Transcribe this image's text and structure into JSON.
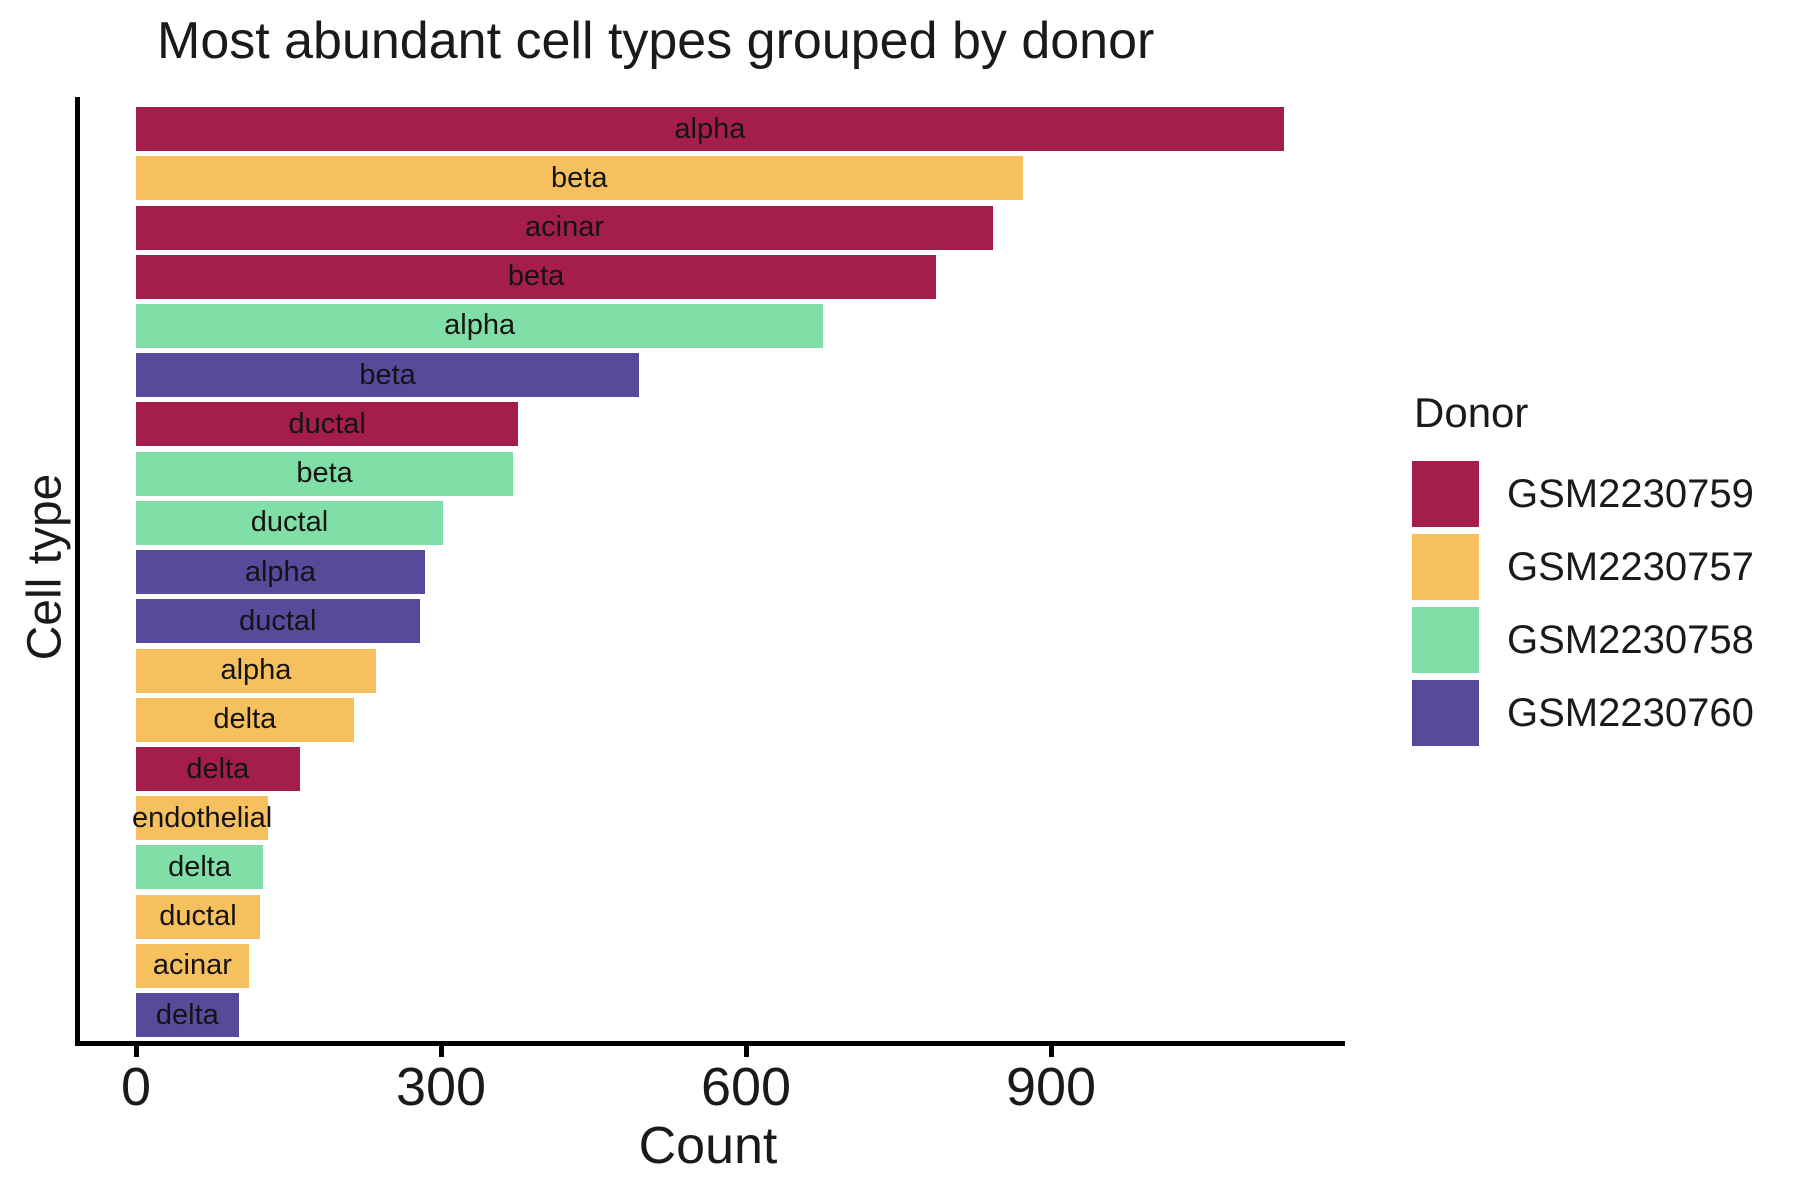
{
  "chart_data": {
    "type": "bar",
    "orientation": "horizontal",
    "title": "Most abundant cell types grouped by donor",
    "xlabel": "Count",
    "ylabel": "Cell type",
    "xlim": [
      0,
      1190
    ],
    "x_ticks": [
      0,
      300,
      600,
      900
    ],
    "grid": false,
    "legend_title": "Donor",
    "legend_position": "right",
    "legend": [
      {
        "donor": "GSM2230759",
        "color": "#A51D4C"
      },
      {
        "donor": "GSM2230757",
        "color": "#F6C05F"
      },
      {
        "donor": "GSM2230758",
        "color": "#80DFA7"
      },
      {
        "donor": "GSM2230760",
        "color": "#59499B"
      }
    ],
    "bars": [
      {
        "label": "alpha",
        "donor": "GSM2230759",
        "value": 1129
      },
      {
        "label": "beta",
        "donor": "GSM2230757",
        "value": 872
      },
      {
        "label": "acinar",
        "donor": "GSM2230759",
        "value": 843
      },
      {
        "label": "beta",
        "donor": "GSM2230759",
        "value": 787
      },
      {
        "label": "alpha",
        "donor": "GSM2230758",
        "value": 676
      },
      {
        "label": "beta",
        "donor": "GSM2230760",
        "value": 495
      },
      {
        "label": "ductal",
        "donor": "GSM2230759",
        "value": 376
      },
      {
        "label": "beta",
        "donor": "GSM2230758",
        "value": 371
      },
      {
        "label": "ductal",
        "donor": "GSM2230758",
        "value": 302
      },
      {
        "label": "alpha",
        "donor": "GSM2230760",
        "value": 284
      },
      {
        "label": "ductal",
        "donor": "GSM2230760",
        "value": 279
      },
      {
        "label": "alpha",
        "donor": "GSM2230757",
        "value": 236
      },
      {
        "label": "delta",
        "donor": "GSM2230757",
        "value": 214
      },
      {
        "label": "delta",
        "donor": "GSM2230759",
        "value": 161
      },
      {
        "label": "endothelial",
        "donor": "GSM2230757",
        "value": 130
      },
      {
        "label": "delta",
        "donor": "GSM2230758",
        "value": 125
      },
      {
        "label": "ductal",
        "donor": "GSM2230757",
        "value": 122
      },
      {
        "label": "acinar",
        "donor": "GSM2230757",
        "value": 111
      },
      {
        "label": "delta",
        "donor": "GSM2230760",
        "value": 101
      }
    ]
  }
}
